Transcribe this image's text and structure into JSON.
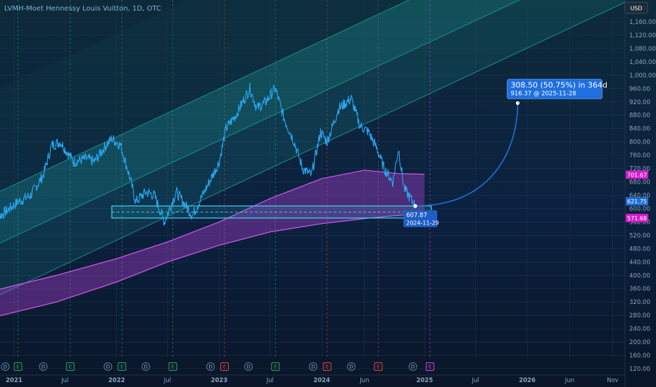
{
  "chart_data": {
    "type": "line",
    "title": "LVMH-Moet Hennessy Louis Vuitton, 1D, OTC",
    "currency": "USD",
    "yticks": [
      120,
      160,
      200,
      240,
      280,
      320,
      360,
      400,
      440,
      480,
      520,
      560,
      600,
      640,
      680,
      720,
      760,
      800,
      840,
      880,
      920,
      960,
      1000,
      1040,
      1080,
      1120,
      1160
    ],
    "ytick_labels": [
      "120.00",
      "160.00",
      "200.00",
      "240.00",
      "280.00",
      "320.00",
      "360.00",
      "400.00",
      "440.00",
      "480.00",
      "520.00",
      "560.00",
      "600.00",
      "640.00",
      "680.00",
      "720.00",
      "760.00",
      "800.00",
      "840.00",
      "880.00",
      "920.00",
      "960.00",
      "1,000.00",
      "1,040.00",
      "1,080.00",
      "1,120.00",
      "1,160.00"
    ],
    "xticks": [
      {
        "label": "2021",
        "date": "2021-01-01",
        "bold": true
      },
      {
        "label": "Jul",
        "date": "2021-07-01",
        "bold": false
      },
      {
        "label": "2022",
        "date": "2022-01-01",
        "bold": true
      },
      {
        "label": "Jul",
        "date": "2022-07-01",
        "bold": false
      },
      {
        "label": "2023",
        "date": "2023-01-01",
        "bold": true
      },
      {
        "label": "Jul",
        "date": "2023-07-01",
        "bold": false
      },
      {
        "label": "2024",
        "date": "2024-01-01",
        "bold": true
      },
      {
        "label": "Jun",
        "date": "2024-06-01",
        "bold": false
      },
      {
        "label": "2025",
        "date": "2025-01-01",
        "bold": true
      },
      {
        "label": "Jul",
        "date": "2025-07-01",
        "bold": false
      },
      {
        "label": "2026",
        "date": "2026-01-01",
        "bold": true
      },
      {
        "label": "Jun",
        "date": "2026-06-01",
        "bold": false
      },
      {
        "label": "Nov",
        "date": "2026-11-01",
        "bold": false
      }
    ],
    "series": [
      {
        "x": [
          "2020-10-15",
          "2020-12-01",
          "2021-01-15",
          "2021-03-01",
          "2021-04-15",
          "2021-05-15",
          "2021-06-15",
          "2021-08-01",
          "2021-09-15",
          "2021-10-15",
          "2021-11-15",
          "2021-12-15",
          "2022-01-15",
          "2022-02-15",
          "2022-03-10",
          "2022-04-15",
          "2022-05-15",
          "2022-06-20",
          "2022-08-01",
          "2022-09-28",
          "2022-11-15",
          "2023-01-01",
          "2023-01-25",
          "2023-03-01",
          "2023-04-20",
          "2023-05-15",
          "2023-06-15",
          "2023-07-20",
          "2023-08-20",
          "2023-09-25",
          "2023-10-25",
          "2023-11-25",
          "2023-12-28",
          "2024-01-20",
          "2024-03-01",
          "2024-04-15",
          "2024-05-15",
          "2024-06-15",
          "2024-07-15",
          "2024-08-10",
          "2024-09-10",
          "2024-09-30",
          "2024-10-20",
          "2024-11-29"
        ],
        "values": [
          560,
          590,
          620,
          640,
          700,
          790,
          800,
          740,
          750,
          740,
          780,
          810,
          790,
          700,
          620,
          650,
          640,
          560,
          650,
          580,
          660,
          740,
          840,
          880,
          960,
          900,
          920,
          960,
          870,
          800,
          720,
          700,
          830,
          800,
          900,
          930,
          850,
          830,
          780,
          720,
          680,
          780,
          660,
          607.87
        ]
      }
    ],
    "channel_mid": {
      "x": [
        "2020-10-01",
        "2026-12-31"
      ],
      "values": [
        480,
        1380
      ]
    },
    "channel_halfwidth": 155,
    "ma_band": {
      "x": [
        "2020-10-01",
        "2021-06-01",
        "2022-01-01",
        "2022-07-01",
        "2023-01-01",
        "2023-07-01",
        "2024-01-01",
        "2024-06-01",
        "2024-10-01",
        "2024-12-31"
      ],
      "upper": [
        350,
        400,
        450,
        500,
        560,
        630,
        690,
        715,
        705,
        703
      ],
      "lower": [
        270,
        320,
        380,
        440,
        490,
        530,
        555,
        570,
        580,
        583
      ]
    },
    "support_zone": {
      "x0": "2021-12-15",
      "x1": "2025-01-25",
      "low": 571.68,
      "high": 607.87
    },
    "projection": {
      "start": "2024-11-29",
      "end": "2025-11-28",
      "start_value": 607.87,
      "end_value": 916.37
    },
    "annotation": {
      "text": "308.50 (50.75%) in 364d",
      "sub": "916.37 @ 2025-11-28"
    },
    "marker_tag": {
      "value": "607.87",
      "date": "2024-11-29"
    },
    "price_tags": [
      {
        "label": "701.67",
        "value": 701.67,
        "color": "#d11ec8"
      },
      {
        "label": "621.75",
        "value": 621.75,
        "color": "#1f6fd1"
      },
      {
        "label": "571.68",
        "value": 571.68,
        "color": "#d11ec8"
      }
    ],
    "dividend_dates": [
      "2020-12-01",
      "2021-04-15",
      "2021-12-01",
      "2022-04-15",
      "2022-12-01",
      "2023-04-15",
      "2023-12-01",
      "2024-04-15",
      "2024-11-20"
    ],
    "earnings_dates": [
      {
        "date": "2021-01-15",
        "color": "#29a36a"
      },
      {
        "date": "2021-07-20",
        "color": "#29a36a"
      },
      {
        "date": "2022-01-20",
        "color": "#29a36a"
      },
      {
        "date": "2022-07-20",
        "color": "#29a36a"
      },
      {
        "date": "2023-01-20",
        "color": "#e04050"
      },
      {
        "date": "2023-07-20",
        "color": "#29a36a"
      },
      {
        "date": "2024-01-20",
        "color": "#e04050"
      },
      {
        "date": "2024-07-20",
        "color": "#e04050"
      },
      {
        "date": "2025-01-20",
        "color": "#e040e0"
      }
    ],
    "colors": {
      "background": "#0b1a2b",
      "channel": "#1fa39a",
      "price": "#2aa8f2",
      "ma_band": "#b640d8",
      "zone": "#3fd8f2",
      "projection": "#1f6fe0",
      "annotation_box": "#1f6fe0"
    }
  }
}
